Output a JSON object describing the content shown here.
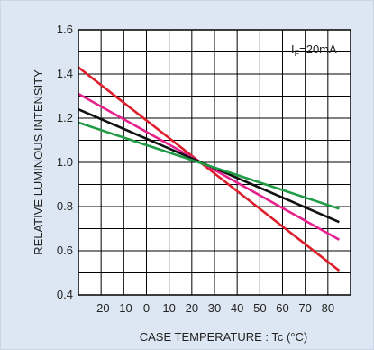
{
  "chart_data": {
    "type": "line",
    "title": "",
    "xlabel": "CASE  TEMPERATURE : Tc  (°C)",
    "ylabel": "RELATIVE  LUMINOUS  INTENSITY",
    "annotation_main": "I",
    "annotation_sub": "F",
    "annotation_rest": "=20mA",
    "xlim": [
      -30,
      90
    ],
    "ylim": [
      0.4,
      1.6
    ],
    "xticks": [
      -20,
      -10,
      0,
      10,
      20,
      30,
      40,
      50,
      60,
      70,
      80
    ],
    "xtick_labels": [
      "-20",
      "-10",
      "0",
      "10",
      "20",
      "30",
      "40",
      "50",
      "60",
      "70",
      "80"
    ],
    "yticks": [
      0.4,
      0.6,
      0.8,
      1.0,
      1.2,
      1.4,
      1.6
    ],
    "ytick_labels": [
      "0.4",
      "0.6",
      "0.8",
      "1.0",
      "1.2",
      "1.4",
      "1.6"
    ],
    "grid": true,
    "legend": "none",
    "series": [
      {
        "color": "#dd1f2c",
        "x": [
          -30,
          85
        ],
        "y": [
          1.43,
          0.51
        ]
      },
      {
        "color": "#e8218c",
        "x": [
          -30,
          85
        ],
        "y": [
          1.31,
          0.65
        ]
      },
      {
        "color": "#111111",
        "x": [
          -30,
          85
        ],
        "y": [
          1.24,
          0.73
        ]
      },
      {
        "color": "#1f9a45",
        "x": [
          -30,
          85
        ],
        "y": [
          1.18,
          0.79
        ]
      }
    ]
  }
}
